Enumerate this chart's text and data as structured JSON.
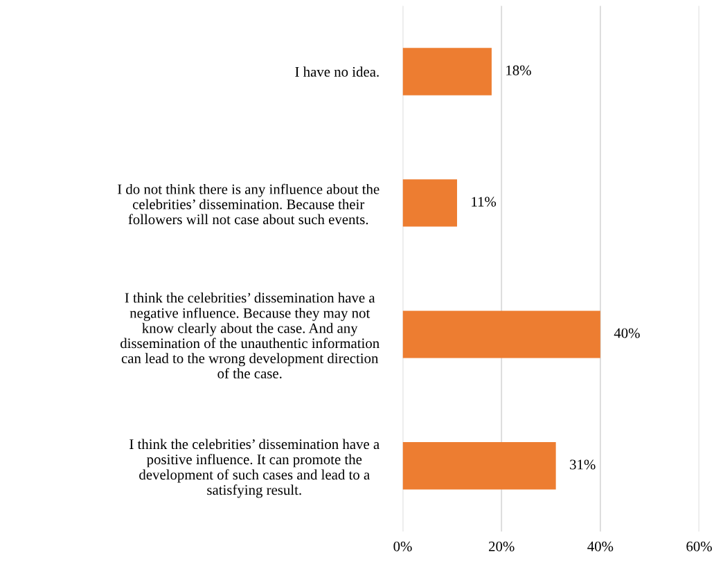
{
  "chart_data": {
    "type": "bar",
    "orientation": "horizontal",
    "categories": [
      "I have no idea.",
      "I do not think there is any influence about the\ncelebrities’ dissemination. Because their\nfollowers will not case about such events.",
      "I think the celebrities’ dissemination have a\nnegative influence. Because they may not\nknow clearly about the case. And any\ndissemination of the unauthentic information\ncan lead to the wrong development direction\nof the case.",
      "I think the celebrities’ dissemination have a\npositive influence. It can promote the\ndevelopment of such cases and lead to a\nsatisfying result."
    ],
    "values": [
      18,
      11,
      40,
      31
    ],
    "value_labels": [
      "18%",
      "11%",
      "40%",
      "31%"
    ],
    "color": "#ed7d31",
    "xlim": [
      0,
      60
    ],
    "xticks": [
      {
        "value": 0,
        "label": "0%"
      },
      {
        "value": 20,
        "label": "20%"
      },
      {
        "value": 40,
        "label": "40%"
      },
      {
        "value": 60,
        "label": "60%"
      }
    ],
    "grid": "x",
    "legend": false
  }
}
